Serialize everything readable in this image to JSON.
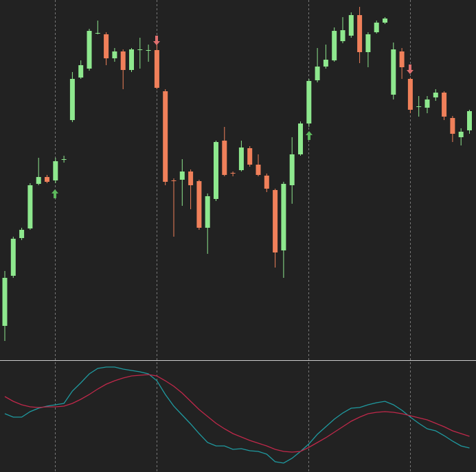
{
  "chart_data": [
    {
      "type": "candlestick",
      "up_color": "#8ee88e",
      "down_color": "#f0805a",
      "ylim": [
        0,
        525
      ],
      "open": [
        50,
        123,
        178,
        192,
        257,
        267,
        262,
        292,
        350,
        412,
        425,
        477,
        475,
        440,
        450,
        423,
        453,
        452,
        452,
        392,
        262,
        263,
        275,
        261,
        193,
        235,
        320,
        273,
        277,
        309,
        285,
        269,
        248,
        160,
        255,
        300,
        345,
        408,
        428,
        437,
        465,
        473,
        503,
        449,
        478,
        492,
        387,
        450,
        410,
        370,
        368,
        383,
        390,
        353,
        325,
        335
      ],
      "close": [
        120,
        177,
        190,
        255,
        267,
        260,
        290,
        293,
        410,
        430,
        480,
        477,
        440,
        450,
        423,
        453,
        453,
        452,
        397,
        260,
        261,
        275,
        255,
        193,
        239,
        318,
        270,
        272,
        310,
        285,
        270,
        250,
        157,
        257,
        300,
        345,
        407,
        428,
        438,
        480,
        481,
        503,
        449,
        475,
        492,
        498,
        453,
        427,
        365,
        370,
        380,
        390,
        355,
        330,
        333,
        363
      ],
      "high": [
        130,
        180,
        193,
        258,
        295,
        270,
        295,
        298,
        420,
        437,
        483,
        495,
        478,
        455,
        453,
        455,
        470,
        460,
        460,
        395,
        265,
        293,
        278,
        263,
        243,
        320,
        340,
        275,
        320,
        312,
        300,
        272,
        250,
        260,
        325,
        348,
        410,
        455,
        460,
        485,
        500,
        507,
        515,
        478,
        495,
        500,
        463,
        455,
        412,
        385,
        385,
        395,
        392,
        356,
        338,
        365
      ],
      "low": [
        28,
        120,
        175,
        190,
        255,
        258,
        258,
        288,
        347,
        410,
        422,
        475,
        430,
        435,
        395,
        420,
        425,
        435,
        395,
        255,
        180,
        225,
        220,
        190,
        155,
        232,
        268,
        268,
        275,
        282,
        268,
        245,
        135,
        120,
        228,
        298,
        340,
        405,
        425,
        435,
        462,
        470,
        433,
        427,
        476,
        490,
        380,
        410,
        360,
        355,
        360,
        378,
        350,
        318,
        313,
        330
      ]
    },
    {
      "type": "line",
      "ylim": [
        0,
        163
      ],
      "series": [
        {
          "color": "#1f9aa0",
          "values": [
            85,
            80,
            80,
            88,
            93,
            96,
            98,
            100,
            118,
            130,
            143,
            151,
            153,
            153,
            150,
            148,
            146,
            143,
            133,
            113,
            96,
            83,
            70,
            56,
            43,
            38,
            38,
            33,
            34,
            31,
            30,
            26,
            15,
            13,
            20,
            30,
            41,
            55,
            66,
            77,
            86,
            93,
            94,
            98,
            101,
            103,
            98,
            90,
            80,
            71,
            63,
            60,
            53,
            45,
            38,
            35
          ]
        },
        {
          "color": "#c0284a",
          "values": [
            110,
            103,
            98,
            95,
            94,
            95,
            95,
            96,
            100,
            106,
            113,
            121,
            128,
            133,
            137,
            140,
            141,
            142,
            140,
            133,
            125,
            115,
            103,
            91,
            81,
            71,
            63,
            56,
            51,
            46,
            42,
            38,
            33,
            30,
            29,
            30,
            36,
            43,
            50,
            58,
            66,
            74,
            80,
            85,
            87,
            88,
            87,
            85,
            82,
            79,
            76,
            71,
            66,
            60,
            56,
            52
          ]
        }
      ]
    }
  ]
}
